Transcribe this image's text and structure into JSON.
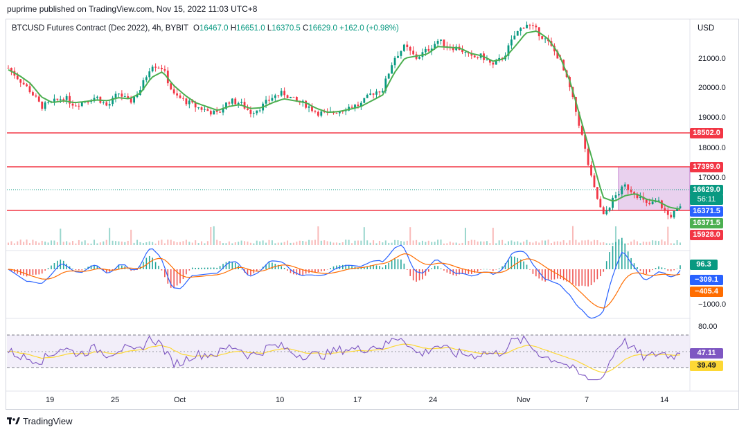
{
  "publisher_line": "puprime published on TradingView.com, Nov 15, 2022 11:03 UTC+8",
  "symbol": {
    "name": "BTCUSD Futures Contract (Dec 2022), 4h, BYBIT",
    "open_label": "O",
    "open": "16467.0",
    "high_label": "H",
    "high": "16651.0",
    "low_label": "L",
    "low": "16370.5",
    "close_label": "C",
    "close": "16629.0",
    "change": "+162.0 (+0.98%)"
  },
  "currency": "USD",
  "brand": "TradingView",
  "colors": {
    "up": "#089981",
    "down": "#f23645",
    "ma": "#4caf50",
    "level": "#f23645",
    "box": "#e1bee7",
    "macd": "#2962ff",
    "signal": "#ff6d00",
    "rsi": "#7e57c2",
    "rsi_ma": "#fdd835"
  },
  "price_ticks": [
    "21000.0",
    "20000.0",
    "19000.0",
    "18000.0",
    "17000.0"
  ],
  "time_ticks": [
    "19",
    "25",
    "Oct",
    "10",
    "17",
    "24",
    "Nov",
    "7",
    "14"
  ],
  "price_labels": {
    "level_1": "18502.0",
    "level_2": "17399.0",
    "last_price": "16629.0",
    "countdown": "56:11",
    "box_low": "16371.5",
    "low_green": "16371.5",
    "low_red": "15928.0"
  },
  "macd_labels": {
    "histogram": "96.3",
    "macd": "−309.1",
    "signal": "−405.4",
    "tick": "−1000.0"
  },
  "rsi_labels": {
    "tick": "80.00",
    "rsi": "47.11",
    "rsi_ma": "39.49"
  },
  "chart_data": {
    "type": "candlestick",
    "instrument": "BTCUSD Futures Contract (Dec 2022)",
    "timeframe": "4h",
    "x": [
      "Sep 19",
      "Sep 25",
      "Oct",
      "Oct 10",
      "Oct 17",
      "Oct 24",
      "Nov",
      "Nov 7",
      "Nov 14"
    ],
    "close_path": [
      20250,
      19950,
      19650,
      19250,
      19350,
      19500,
      19300,
      19400,
      19500,
      19250,
      19600,
      19350,
      19700,
      20350,
      20250,
      19550,
      19400,
      19250,
      19150,
      19050,
      19400,
      19350,
      19100,
      19250,
      19500,
      19600,
      19400,
      19300,
      19100,
      19050,
      19150,
      19250,
      19300,
      19600,
      19700,
      20500,
      20800,
      20500,
      20700,
      20950,
      20800,
      20750,
      20500,
      20550,
      20300,
      20550,
      21100,
      21400,
      21200,
      20900,
      20500,
      19700,
      18600,
      17300,
      16400,
      16900,
      17200,
      17000,
      16700,
      16800,
      16400,
      16629
    ],
    "ma_path": [
      20200,
      20050,
      19850,
      19500,
      19350,
      19400,
      19350,
      19380,
      19420,
      19400,
      19480,
      19450,
      19600,
      20000,
      20150,
      19800,
      19550,
      19350,
      19250,
      19150,
      19250,
      19300,
      19200,
      19220,
      19350,
      19450,
      19400,
      19350,
      19200,
      19100,
      19120,
      19180,
      19250,
      19400,
      19550,
      20100,
      20500,
      20550,
      20600,
      20800,
      20780,
      20760,
      20620,
      20560,
      20420,
      20480,
      20800,
      21150,
      21200,
      21000,
      20600,
      19900,
      18900,
      17900,
      16900,
      16800,
      16950,
      17000,
      16850,
      16800,
      16650,
      16600
    ],
    "ylim": [
      15800,
      21500
    ],
    "horizontal_levels": [
      18502.0,
      17399.0,
      16371.5
    ],
    "range_box": {
      "top": 17399.0,
      "bottom": 16371.5
    },
    "indicators": {
      "macd": {
        "histogram": 96.3,
        "macd": -309.1,
        "signal": -405.4
      },
      "rsi": {
        "rsi": 47.11,
        "rsi_ma": 39.49
      }
    }
  }
}
